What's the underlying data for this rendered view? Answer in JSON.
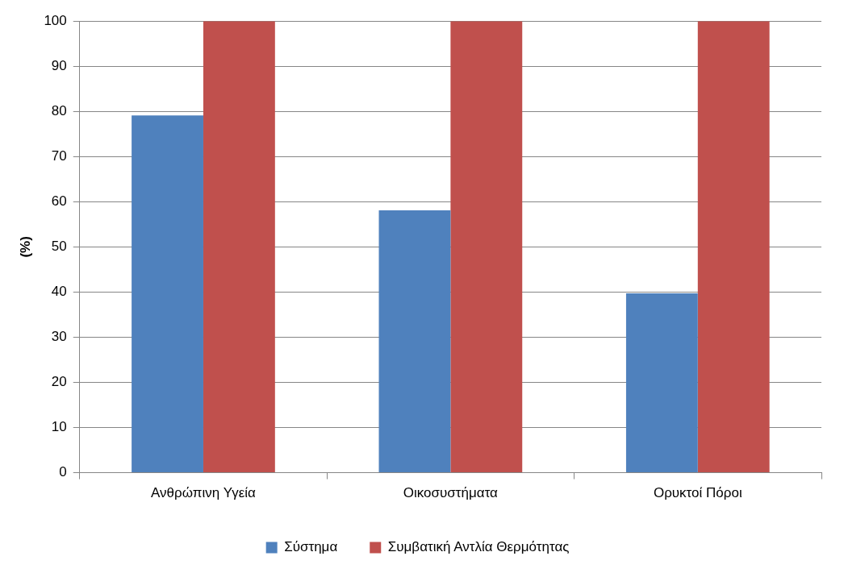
{
  "chart_data": {
    "type": "bar",
    "ylabel": "(%)",
    "categories": [
      "Ανθρώπινη Υγεία",
      "Οικοσυστήματα",
      "Ορυκτοί Πόροι"
    ],
    "series": [
      {
        "name": "Σύστημα",
        "color": "#4f81bd",
        "values": [
          79.1,
          58.1,
          39.7
        ]
      },
      {
        "name": "Συμβατική Αντλία Θερμότητας",
        "color": "#c0504d",
        "values": [
          100,
          100,
          100
        ]
      }
    ],
    "ylim": [
      0,
      100
    ],
    "yticks": [
      0,
      10,
      20,
      30,
      40,
      50,
      60,
      70,
      80,
      90,
      100
    ],
    "grid": "y",
    "legend": "bottom"
  }
}
